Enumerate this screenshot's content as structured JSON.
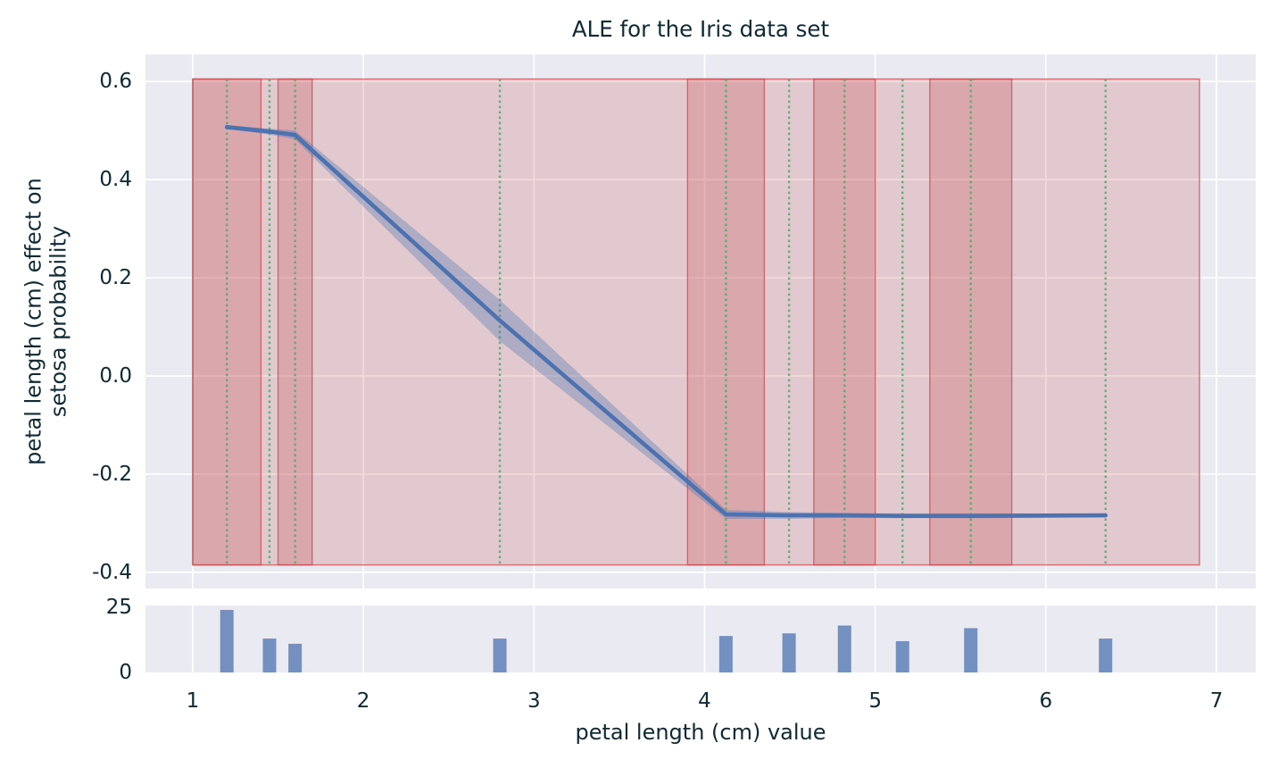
{
  "figure": {
    "title": "ALE for the Iris data set",
    "xlabel": "petal length (cm) value",
    "ylabel_line1": "petal length (cm) effect on",
    "ylabel_line2": "setosa probability"
  },
  "colors": {
    "axes_background": "#eaeaf2",
    "gridline": "#ffffff",
    "ale_line": "#4c72b0",
    "confidence_band": "#4c72b0",
    "quantile_band": "#c44e52",
    "quantile_band_edge": "#c44e52",
    "decile_center_line": "#55a868",
    "histogram_bar": "#4c72b0",
    "text": "#0d2a35"
  },
  "chart_data": [
    {
      "type": "line",
      "title": "ALE for the Iris data set",
      "xlabel": "petal length (cm) value",
      "ylabel": "petal length (cm) effect on setosa probability",
      "x": [
        1.2,
        1.45,
        1.6,
        2.8,
        4.125,
        4.495,
        4.82,
        5.16,
        5.56,
        6.35
      ],
      "y": [
        0.507,
        0.498,
        0.491,
        0.113,
        -0.282,
        -0.284,
        -0.284,
        -0.285,
        -0.285,
        -0.284
      ],
      "ci_lower": [
        0.503,
        0.492,
        0.482,
        0.071,
        -0.291,
        -0.291,
        -0.289,
        -0.29,
        -0.29,
        -0.288
      ],
      "ci_upper": [
        0.511,
        0.504,
        0.5,
        0.155,
        -0.273,
        -0.277,
        -0.279,
        -0.28,
        -0.28,
        -0.28
      ],
      "xticks": [
        1,
        2,
        3,
        4,
        5,
        6,
        7
      ],
      "yticks": [
        0.6,
        0.4,
        0.2,
        0.0,
        -0.2,
        -0.4
      ],
      "ytick_labels": [
        "0.6",
        "0.4",
        "0.2",
        "0.0",
        "-0.2",
        "-0.4"
      ],
      "xlim": [
        0.723,
        7.23
      ],
      "ylim": [
        -0.433,
        0.655
      ],
      "grid": true,
      "legend": false,
      "quantile_edges": [
        1.0,
        1.4,
        1.5,
        1.7,
        3.9,
        4.35,
        4.64,
        5.0,
        5.32,
        5.8,
        6.9
      ],
      "shaded_intervals_dark": [
        [
          1.0,
          1.4
        ],
        [
          1.5,
          1.7
        ],
        [
          3.9,
          4.35
        ],
        [
          4.64,
          5.0
        ],
        [
          5.32,
          5.8
        ]
      ],
      "band_y_range": [
        -0.385,
        0.605
      ],
      "decile_center_lines": [
        1.2,
        1.45,
        1.6,
        2.8,
        4.125,
        4.495,
        4.82,
        5.16,
        5.56,
        6.35
      ]
    },
    {
      "type": "bar",
      "categories": [
        1.2,
        1.45,
        1.6,
        2.8,
        4.125,
        4.495,
        4.82,
        5.16,
        5.56,
        6.35
      ],
      "values": [
        24,
        13,
        11,
        13,
        14,
        15,
        18,
        12,
        17,
        13
      ],
      "yticks": [
        25,
        0
      ],
      "ytick_labels": [
        "25",
        "0"
      ],
      "xticks": [
        1,
        2,
        3,
        4,
        5,
        6,
        7
      ],
      "xlim": [
        0.723,
        7.23
      ],
      "ylim": [
        0,
        25.7
      ],
      "ylabel": ""
    }
  ]
}
